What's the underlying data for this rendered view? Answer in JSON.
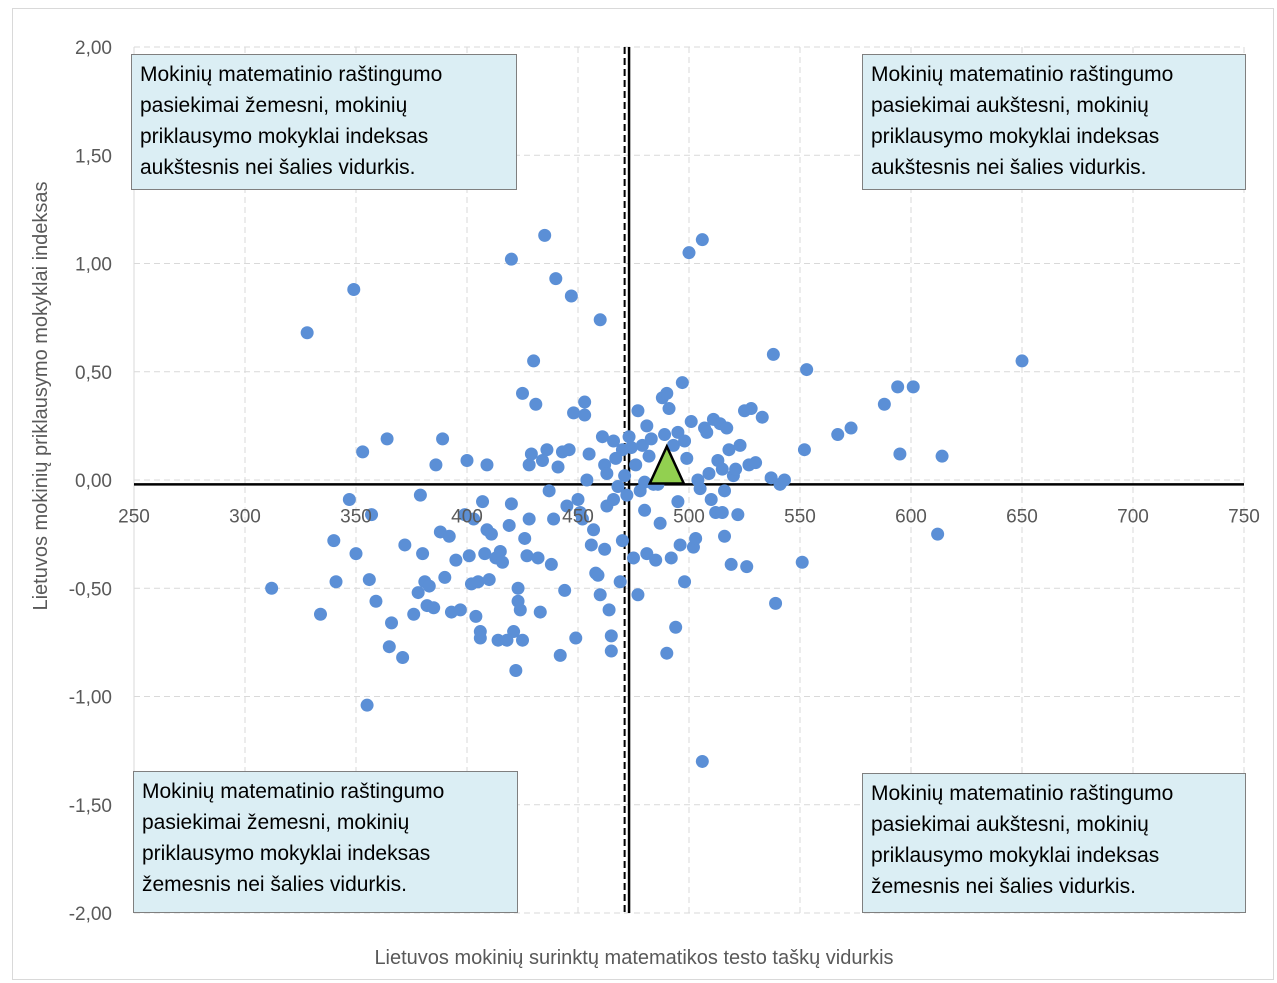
{
  "chart_data": {
    "type": "scatter",
    "title": "",
    "xlabel": "Lietuvos mokinių surinktų matematikos testo taškų vidurkis",
    "ylabel": "Lietuvos mokinių priklausymo mokyklai indeksas",
    "xlim": [
      250,
      750
    ],
    "ylim": [
      -2,
      2
    ],
    "x_ticks": [
      "250",
      "300",
      "350",
      "400",
      "450",
      "500",
      "550",
      "600",
      "650",
      "700",
      "750"
    ],
    "y_ticks": [
      "2,00",
      "1,50",
      "1,00",
      "0,50",
      "0,00",
      "-0,50",
      "-1,00",
      "-1,50",
      "-2,00"
    ],
    "grid": true,
    "reference_lines": {
      "solid_x": 473,
      "dashed_x": 471,
      "solid_y": -0.02
    },
    "colors": {
      "points": "#5b8fd6",
      "marker": "#92d050",
      "box_fill": "#dbeef4"
    },
    "highlight": {
      "x": 490,
      "y": 0.03,
      "shape": "triangle"
    },
    "quadrants": {
      "top_left": [
        "Mokinių matematinio raštingumo",
        "pasiekimai žemesni, mokinių",
        "priklausymo mokyklai  indeksas",
        "aukštesnis nei šalies vidurkis."
      ],
      "top_right": [
        "Mokinių matematinio raštingumo",
        "pasiekimai aukštesni, mokinių",
        "priklausymo mokyklai  indeksas",
        "aukštesnis nei šalies vidurkis."
      ],
      "bottom_left": [
        "Mokinių matematinio raštingumo",
        "pasiekimai žemesni, mokinių",
        "priklausymo mokyklai  indeksas",
        "žemesnis nei šalies vidurkis."
      ],
      "bottom_right": [
        "Mokinių matematinio raštingumo",
        "pasiekimai aukštesni, mokinių",
        "priklausymo mokyklai  indeksas",
        "žemesnis nei šalies vidurkis."
      ]
    },
    "points": [
      [
        328,
        0.68
      ],
      [
        349,
        0.88
      ],
      [
        312,
        -0.5
      ],
      [
        334,
        -0.62
      ],
      [
        340,
        -0.28
      ],
      [
        341,
        -0.47
      ],
      [
        347,
        -0.09
      ],
      [
        350,
        -0.34
      ],
      [
        353,
        0.13
      ],
      [
        355,
        -1.04
      ],
      [
        356,
        -0.46
      ],
      [
        357,
        -0.16
      ],
      [
        359,
        -0.56
      ],
      [
        364,
        0.19
      ],
      [
        365,
        -0.77
      ],
      [
        366,
        -0.66
      ],
      [
        371,
        -0.82
      ],
      [
        372,
        -0.3
      ],
      [
        376,
        -0.62
      ],
      [
        378,
        -0.52
      ],
      [
        379,
        -0.07
      ],
      [
        380,
        -0.34
      ],
      [
        381,
        -0.47
      ],
      [
        382,
        -0.58
      ],
      [
        383,
        -0.49
      ],
      [
        385,
        -0.59
      ],
      [
        386,
        0.07
      ],
      [
        388,
        -0.24
      ],
      [
        389,
        0.19
      ],
      [
        390,
        -0.45
      ],
      [
        392,
        -0.26
      ],
      [
        393,
        -0.61
      ],
      [
        395,
        -0.37
      ],
      [
        397,
        -0.6
      ],
      [
        399,
        -0.16
      ],
      [
        400,
        0.09
      ],
      [
        401,
        -0.35
      ],
      [
        402,
        -0.48
      ],
      [
        403,
        -0.18
      ],
      [
        404,
        -0.63
      ],
      [
        405,
        -0.47
      ],
      [
        406,
        -0.7
      ],
      [
        406,
        -0.73
      ],
      [
        407,
        -0.1
      ],
      [
        408,
        -0.34
      ],
      [
        409,
        0.07
      ],
      [
        409,
        -0.23
      ],
      [
        410,
        -0.46
      ],
      [
        411,
        -0.25
      ],
      [
        413,
        -0.36
      ],
      [
        414,
        -0.74
      ],
      [
        415,
        -0.33
      ],
      [
        416,
        -0.38
      ],
      [
        418,
        -0.74
      ],
      [
        419,
        -0.21
      ],
      [
        420,
        1.02
      ],
      [
        420,
        -0.11
      ],
      [
        421,
        -0.7
      ],
      [
        422,
        -0.88
      ],
      [
        423,
        -0.56
      ],
      [
        423,
        -0.5
      ],
      [
        424,
        -0.6
      ],
      [
        425,
        -0.74
      ],
      [
        425,
        0.4
      ],
      [
        426,
        -0.27
      ],
      [
        427,
        -0.35
      ],
      [
        428,
        0.07
      ],
      [
        428,
        -0.18
      ],
      [
        429,
        0.12
      ],
      [
        430,
        0.55
      ],
      [
        431,
        0.35
      ],
      [
        432,
        -0.36
      ],
      [
        433,
        -0.61
      ],
      [
        434,
        0.09
      ],
      [
        435,
        1.13
      ],
      [
        436,
        0.14
      ],
      [
        437,
        -0.05
      ],
      [
        438,
        -0.39
      ],
      [
        439,
        -0.18
      ],
      [
        440,
        0.93
      ],
      [
        441,
        0.06
      ],
      [
        442,
        -0.81
      ],
      [
        443,
        0.13
      ],
      [
        444,
        -0.51
      ],
      [
        445,
        -0.12
      ],
      [
        446,
        0.14
      ],
      [
        447,
        0.85
      ],
      [
        448,
        0.31
      ],
      [
        449,
        -0.73
      ],
      [
        450,
        -0.09
      ],
      [
        451,
        -0.15
      ],
      [
        452,
        -0.18
      ],
      [
        453,
        0.3
      ],
      [
        453,
        0.36
      ],
      [
        454,
        0.0
      ],
      [
        455,
        0.12
      ],
      [
        456,
        -0.3
      ],
      [
        457,
        -0.23
      ],
      [
        458,
        -0.43
      ],
      [
        459,
        -0.44
      ],
      [
        460,
        0.74
      ],
      [
        460,
        -0.53
      ],
      [
        461,
        0.2
      ],
      [
        462,
        0.07
      ],
      [
        462,
        -0.32
      ],
      [
        463,
        -0.12
      ],
      [
        463,
        0.03
      ],
      [
        464,
        -0.6
      ],
      [
        465,
        -0.79
      ],
      [
        465,
        -0.72
      ],
      [
        466,
        0.18
      ],
      [
        466,
        -0.09
      ],
      [
        467,
        0.1
      ],
      [
        468,
        -0.03
      ],
      [
        469,
        -0.47
      ],
      [
        470,
        0.14
      ],
      [
        470,
        -0.28
      ],
      [
        471,
        0.02
      ],
      [
        472,
        -0.07
      ],
      [
        473,
        0.2
      ],
      [
        474,
        0.15
      ],
      [
        475,
        -0.36
      ],
      [
        476,
        0.07
      ],
      [
        477,
        0.32
      ],
      [
        477,
        -0.53
      ],
      [
        478,
        -0.05
      ],
      [
        479,
        0.16
      ],
      [
        480,
        -0.14
      ],
      [
        480,
        -0.01
      ],
      [
        481,
        0.25
      ],
      [
        481,
        -0.34
      ],
      [
        482,
        0.11
      ],
      [
        483,
        0.19
      ],
      [
        484,
        -0.02
      ],
      [
        485,
        -0.37
      ],
      [
        486,
        -0.02
      ],
      [
        487,
        -0.2
      ],
      [
        488,
        0.38
      ],
      [
        489,
        0.21
      ],
      [
        490,
        0.4
      ],
      [
        490,
        -0.8
      ],
      [
        491,
        0.33
      ],
      [
        492,
        -0.36
      ],
      [
        493,
        0.16
      ],
      [
        494,
        -0.68
      ],
      [
        495,
        0.22
      ],
      [
        495,
        -0.1
      ],
      [
        496,
        -0.3
      ],
      [
        497,
        0.45
      ],
      [
        498,
        -0.47
      ],
      [
        498,
        0.18
      ],
      [
        499,
        0.1
      ],
      [
        500,
        1.05
      ],
      [
        501,
        0.27
      ],
      [
        502,
        -0.31
      ],
      [
        503,
        -0.27
      ],
      [
        504,
        0.0
      ],
      [
        505,
        -0.04
      ],
      [
        506,
        1.11
      ],
      [
        506,
        -1.3
      ],
      [
        507,
        0.24
      ],
      [
        508,
        0.22
      ],
      [
        509,
        0.03
      ],
      [
        510,
        -0.09
      ],
      [
        511,
        0.28
      ],
      [
        512,
        -0.15
      ],
      [
        513,
        0.09
      ],
      [
        514,
        0.26
      ],
      [
        515,
        0.05
      ],
      [
        515,
        -0.15
      ],
      [
        516,
        -0.05
      ],
      [
        516,
        -0.26
      ],
      [
        517,
        0.24
      ],
      [
        518,
        0.14
      ],
      [
        519,
        -0.39
      ],
      [
        520,
        0.02
      ],
      [
        521,
        0.05
      ],
      [
        522,
        -0.16
      ],
      [
        523,
        0.16
      ],
      [
        525,
        0.32
      ],
      [
        526,
        -0.4
      ],
      [
        527,
        0.07
      ],
      [
        528,
        0.33
      ],
      [
        530,
        0.08
      ],
      [
        533,
        0.29
      ],
      [
        537,
        0.01
      ],
      [
        538,
        0.58
      ],
      [
        539,
        -0.57
      ],
      [
        541,
        -0.02
      ],
      [
        543,
        0.0
      ],
      [
        551,
        -0.38
      ],
      [
        552,
        0.14
      ],
      [
        553,
        0.51
      ],
      [
        567,
        0.21
      ],
      [
        573,
        0.24
      ],
      [
        588,
        0.35
      ],
      [
        594,
        0.43
      ],
      [
        595,
        0.12
      ],
      [
        601,
        0.43
      ],
      [
        614,
        0.11
      ],
      [
        612,
        -0.25
      ],
      [
        650,
        0.55
      ]
    ]
  }
}
